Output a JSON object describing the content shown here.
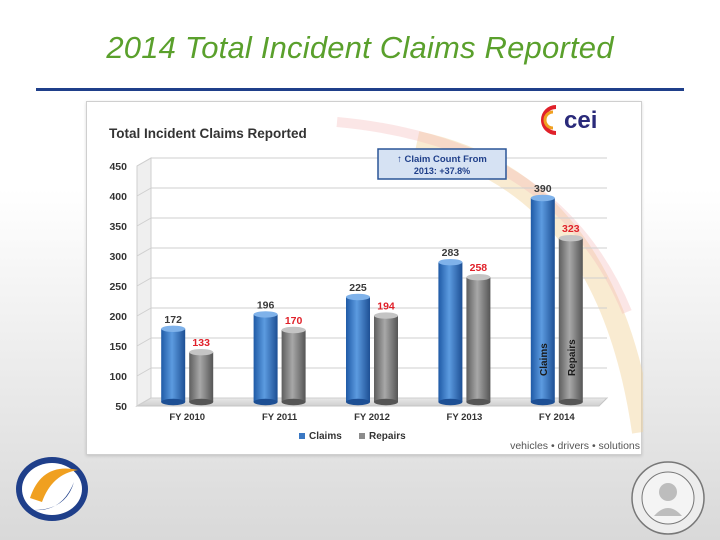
{
  "slide": {
    "title": "2014 Total Incident Claims Reported"
  },
  "brand": {
    "logo_text": "cei",
    "tagline": "vehicles • drivers • solutions",
    "accent": "#5aa02c",
    "rule_color": "#1f3f8a"
  },
  "chart_data": {
    "type": "bar",
    "title": "Total Incident Claims Reported",
    "categories": [
      "FY 2010",
      "FY 2011",
      "FY 2012",
      "FY 2013",
      "FY 2014"
    ],
    "series": [
      {
        "name": "Claims",
        "values": [
          172,
          196,
          225,
          283,
          390
        ],
        "color": "#3a78c3",
        "label_color": "#3a3a3a"
      },
      {
        "name": "Repairs",
        "values": [
          133,
          170,
          194,
          258,
          323
        ],
        "color": "#8c8c8c",
        "label_color": "#e0212a"
      }
    ],
    "ylim": [
      50,
      450
    ],
    "yticks": [
      50,
      100,
      150,
      200,
      250,
      300,
      350,
      400,
      450
    ],
    "grid": true,
    "legend": "bottom",
    "annotation": {
      "line1": "↑ Claim Count From",
      "line2": "2013: +37.8%"
    },
    "in_bar_labels": [
      "Claims",
      "Repairs"
    ]
  }
}
